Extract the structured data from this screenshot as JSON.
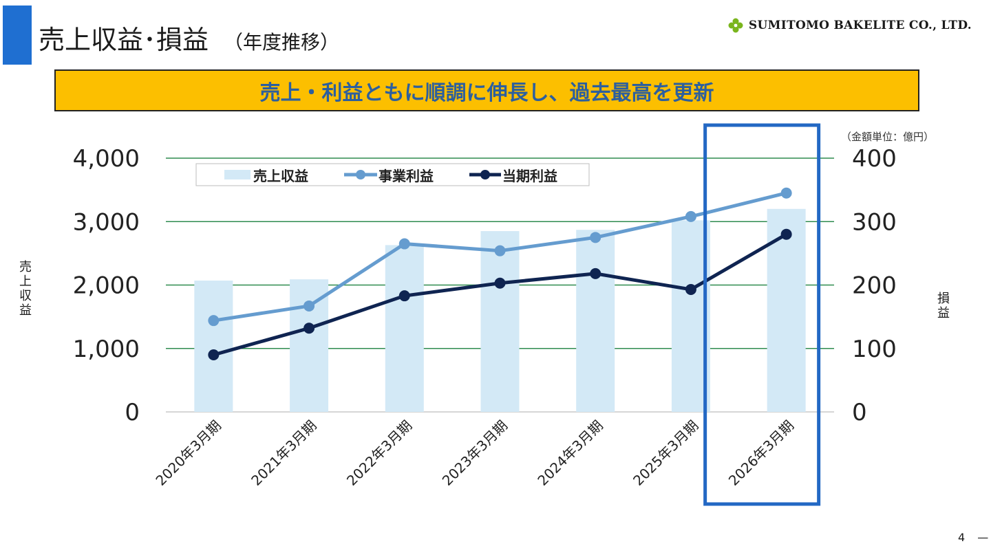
{
  "header": {
    "title": "売上収益･損益",
    "subtitle": "（年度推移）",
    "company": "SUMITOMO BAKELITE CO., LTD."
  },
  "banner": {
    "text": "売上・利益ともに順調に伸長し、過去最高を更新"
  },
  "unit_note": "（金額単位：億円）",
  "page": {
    "number": "4",
    "dash": "—"
  },
  "colors": {
    "bar": "#d3e9f6",
    "operating": "#659ccf",
    "net": "#0f2451",
    "grid": "#2e8b4f",
    "highlight": "#2368c4",
    "banner_bg": "#fcbf00",
    "banner_text": "#2c5f9e",
    "title_bar": "#1f6fd1"
  },
  "chart_data": {
    "type": "bar",
    "categories": [
      "2020年3月期",
      "2021年3月期",
      "2022年3月期",
      "2023年3月期",
      "2024年3月期",
      "2025年3月期",
      "2026年3月期"
    ],
    "series": [
      {
        "name": "売上収益",
        "type": "bar",
        "axis": "left",
        "values": [
          2070,
          2090,
          2630,
          2850,
          2870,
          3020,
          3200
        ]
      },
      {
        "name": "事業利益",
        "type": "line",
        "axis": "right",
        "values": [
          144,
          167,
          265,
          254,
          275,
          308,
          345
        ]
      },
      {
        "name": "当期利益",
        "type": "line",
        "axis": "right",
        "values": [
          90,
          132,
          183,
          203,
          218,
          193,
          280
        ]
      }
    ],
    "y_left": {
      "label": "売上収益",
      "range": [
        0,
        4000
      ],
      "ticks": [
        "0",
        "1,000",
        "2,000",
        "3,000",
        "4,000"
      ]
    },
    "y_right": {
      "label": "損益",
      "range": [
        0,
        400
      ],
      "ticks": [
        "0",
        "100",
        "200",
        "300",
        "400"
      ]
    },
    "grid": true,
    "legend": "top-left",
    "highlight_category": "2026年3月期"
  }
}
